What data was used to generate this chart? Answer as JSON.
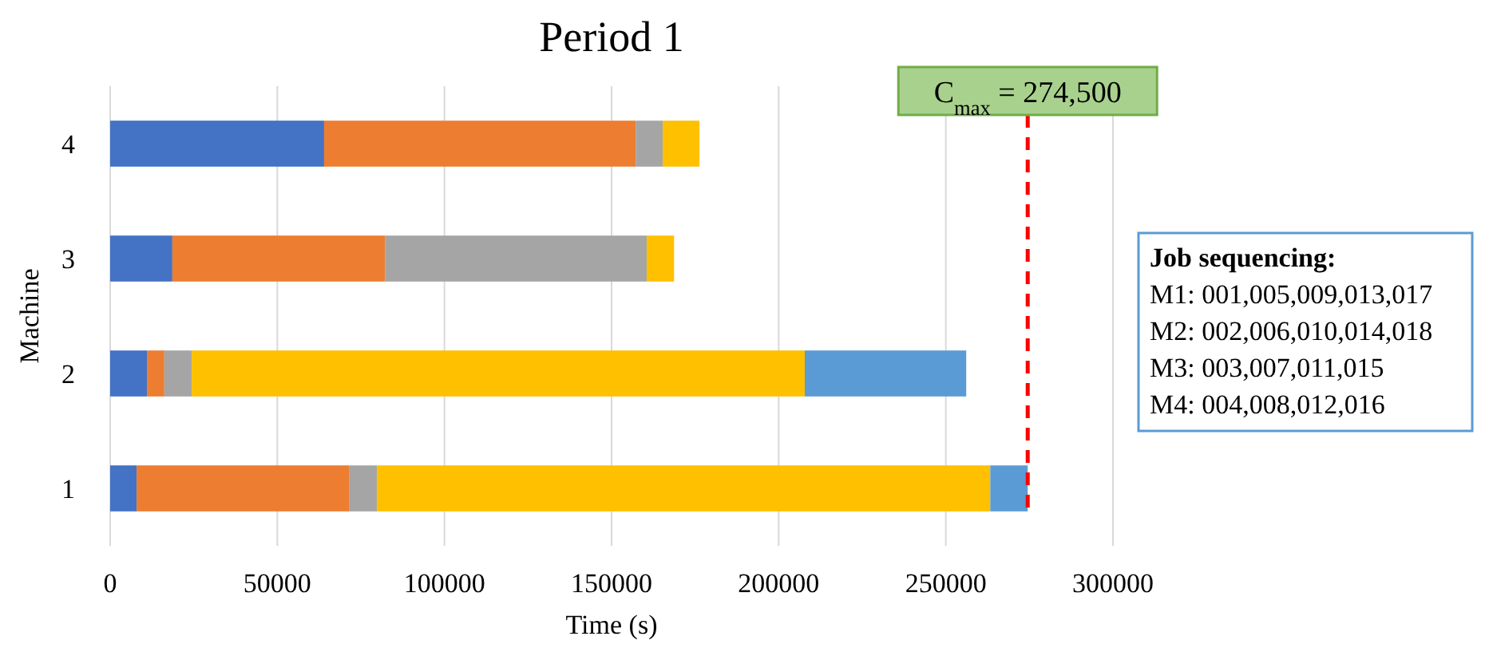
{
  "chart_data": {
    "type": "bar",
    "orientation": "horizontal",
    "stacked": true,
    "title": "Period 1",
    "xlabel": "Time (s)",
    "ylabel": "Machine",
    "categories": [
      "4",
      "3",
      "2",
      "1"
    ],
    "series": [
      {
        "color": "#4472c4",
        "values": [
          64000,
          18600,
          11000,
          7900
        ]
      },
      {
        "color": "#ed7d31",
        "values": [
          93200,
          63600,
          5200,
          63700
        ]
      },
      {
        "color": "#a5a5a5",
        "values": [
          8100,
          78300,
          8200,
          8200
        ]
      },
      {
        "color": "#ffc000",
        "values": [
          11000,
          8200,
          183400,
          183500
        ]
      },
      {
        "color": "#5b9bd5",
        "values": [
          null,
          null,
          48300,
          11200
        ]
      }
    ],
    "xlim": [
      0,
      300000
    ],
    "xticks": [
      0,
      50000,
      100000,
      150000,
      200000,
      250000,
      300000
    ],
    "grid": "x",
    "ref_lines": [
      {
        "axis": "x",
        "value": 274500,
        "label": "C$_{max}$ = 274,500",
        "color": "#ff0000",
        "line_style": "dashed"
      }
    ],
    "annotations": [
      "Job sequencing:",
      "M1: 001,005,009,013,017",
      "M2: 002,006,010,014,018",
      "M3: 003,007,011,015",
      "M4: 004,008,012,016"
    ]
  }
}
